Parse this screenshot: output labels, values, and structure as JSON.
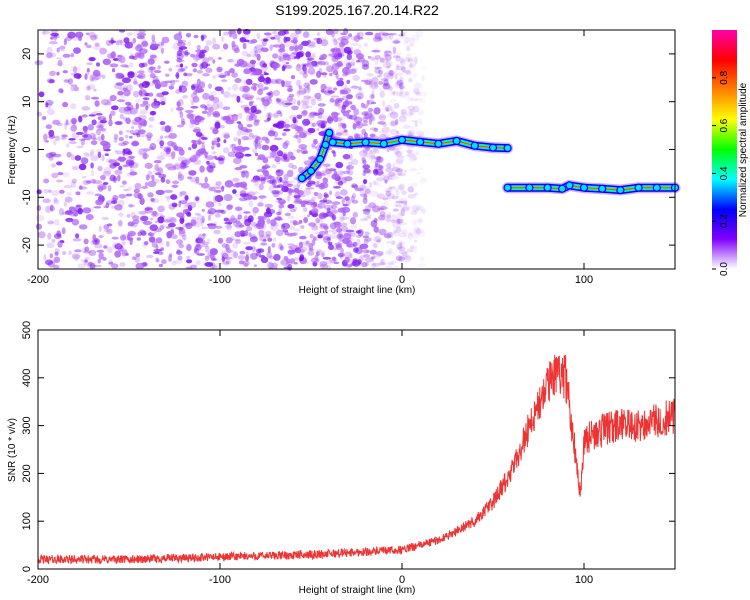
{
  "figure": {
    "title": "S199.2025.167.20.14.R22"
  },
  "chart_data": [
    {
      "type": "heatmap",
      "title": "",
      "xlabel": "Height of straight line (km)",
      "ylabel": "Frequency (Hz)",
      "xlim": [
        -200,
        150
      ],
      "ylim": [
        -25,
        25
      ],
      "x_ticks": [
        -200,
        -100,
        0,
        100
      ],
      "x_tick_labels": [
        "-200",
        "-100",
        "0",
        "100"
      ],
      "y_ticks": [
        -20,
        -10,
        0,
        10,
        20
      ],
      "y_tick_labels": [
        "-20",
        "-10",
        "0",
        "10",
        "20"
      ],
      "grid": false,
      "colorbar": {
        "label": "Normalized spectral amplitude",
        "range": [
          0,
          1
        ],
        "ticks": [
          0.0,
          0.2,
          0.4,
          0.6,
          0.8
        ],
        "tick_labels": [
          "0.0",
          "0.2",
          "0.4",
          "0.6",
          "0.8"
        ],
        "colors": [
          "#ffffff",
          "#8000ff",
          "#0000ff",
          "#00ffff",
          "#00ff00",
          "#ffff00",
          "#ff8000",
          "#ff0000",
          "#ff00aa"
        ]
      },
      "series": [
        {
          "points": [
            [
              -55,
              -6
            ],
            [
              -50,
              -4.5
            ],
            [
              -45,
              -2
            ],
            [
              -42,
              1
            ],
            [
              -40,
              3.5
            ]
          ]
        },
        {
          "points": [
            [
              -38,
              1.5
            ],
            [
              -30,
              1.2
            ],
            [
              -20,
              1.5
            ],
            [
              -10,
              1.2
            ],
            [
              0,
              2
            ],
            [
              10,
              1.6
            ],
            [
              20,
              1.2
            ],
            [
              30,
              1.8
            ],
            [
              40,
              0.8
            ],
            [
              50,
              0.4
            ],
            [
              58,
              0.3
            ]
          ]
        },
        {
          "points": [
            [
              58,
              -8
            ],
            [
              70,
              -8
            ],
            [
              80,
              -8
            ],
            [
              88,
              -8.2
            ],
            [
              92,
              -7.5
            ],
            [
              100,
              -8
            ],
            [
              110,
              -8.2
            ],
            [
              120,
              -8.5
            ],
            [
              130,
              -8
            ],
            [
              140,
              -8
            ],
            [
              150,
              -8
            ]
          ]
        }
      ],
      "noise_region": {
        "x_range": [
          -200,
          -30
        ],
        "y_range": [
          -25,
          25
        ],
        "amplitude": 0.2
      }
    },
    {
      "type": "line",
      "title": "",
      "xlabel": "Height of straight line (km)",
      "ylabel": "SNR (10 * v/v)",
      "xlim": [
        -200,
        150
      ],
      "ylim": [
        0,
        500
      ],
      "x_ticks": [
        -200,
        -100,
        0,
        100
      ],
      "x_tick_labels": [
        "-200",
        "-100",
        "0",
        "100"
      ],
      "y_ticks": [
        0,
        100,
        200,
        300,
        400,
        500
      ],
      "y_tick_labels": [
        "0",
        "100",
        "200",
        "300",
        "400",
        "500"
      ],
      "grid": false,
      "line_color": "#ee3333",
      "series": [
        {
          "x": [
            -200,
            -150,
            -100,
            -50,
            -25,
            0,
            20,
            40,
            50,
            60,
            70,
            80,
            85,
            90,
            95,
            98,
            100,
            110,
            120,
            130,
            140,
            150
          ],
          "y": [
            20,
            20,
            25,
            30,
            35,
            40,
            60,
            100,
            140,
            200,
            300,
            380,
            420,
            400,
            250,
            160,
            270,
            290,
            300,
            300,
            310,
            320
          ]
        }
      ]
    }
  ]
}
